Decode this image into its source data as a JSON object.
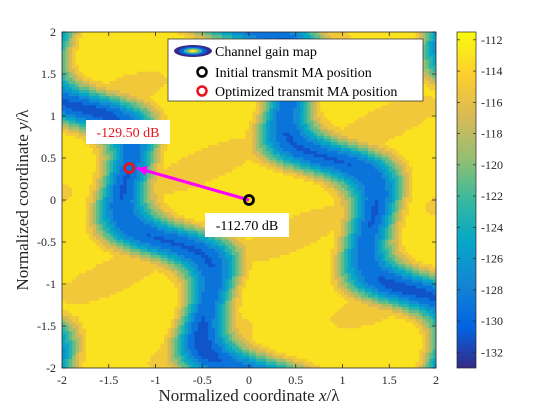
{
  "chart_data": {
    "type": "heatmap",
    "title": "",
    "xlabel": "Normalized coordinate x/λ",
    "ylabel": "Normalized coordinate y/λ",
    "xlabel_parts": [
      "Normalized coordinate ",
      "x",
      "/λ"
    ],
    "ylabel_parts": [
      "Normalized coordinate ",
      "y",
      "/λ"
    ],
    "xlim": [
      -2,
      2
    ],
    "ylim": [
      -2,
      2
    ],
    "x_ticks": [
      -2,
      -1.5,
      -1,
      -0.5,
      0,
      0.5,
      1,
      1.5,
      2
    ],
    "x_tick_labels": [
      "-2",
      "-1.5",
      "-1",
      "-0.5",
      "0",
      "0.5",
      "1",
      "1.5",
      "2"
    ],
    "y_ticks": [
      -2,
      -1.5,
      -1,
      -0.5,
      0,
      0.5,
      1,
      1.5,
      2
    ],
    "y_tick_labels": [
      "-2",
      "-1.5",
      "-1",
      "-0.5",
      "0",
      "0.5",
      "1",
      "1.5",
      "2"
    ],
    "colorbar": {
      "range": [
        -133,
        -111.5
      ],
      "ticks": [
        -112,
        -114,
        -116,
        -118,
        -120,
        -122,
        -124,
        -126,
        -128,
        -130,
        -132
      ],
      "tick_labels": [
        "-112",
        "-114",
        "-116",
        "-118",
        "-120",
        "-122",
        "-124",
        "-126",
        "-128",
        "-130",
        "-132"
      ],
      "colormap": "parula",
      "colors": [
        "#352a87",
        "#0363e1",
        "#1485d4",
        "#06a7c6",
        "#38b99e",
        "#92bf73",
        "#d9ba56",
        "#fcce2e",
        "#f9fb0e"
      ]
    },
    "legend": {
      "position": "top-right",
      "items": [
        {
          "label": "Channel gain map",
          "marker": "contour"
        },
        {
          "label": "Initial transmit MA position",
          "marker": "circle",
          "color": "#000000"
        },
        {
          "label": "Optimized transmit MA position",
          "marker": "circle",
          "color": "#e8141c"
        }
      ]
    },
    "points": [
      {
        "name": "initial",
        "x": 0.0,
        "y": 0.0,
        "gain_db": -112.7,
        "label": "-112.70 dB",
        "label_color": "#000000"
      },
      {
        "name": "optimized",
        "x": -1.28,
        "y": 0.38,
        "gain_db": -129.5,
        "label": "-129.50 dB",
        "label_color": "#e8141c"
      }
    ],
    "arrow": {
      "from": [
        0.0,
        0.0
      ],
      "to": [
        -1.2,
        0.38
      ],
      "color": "#ff00ff"
    },
    "grid": false
  }
}
